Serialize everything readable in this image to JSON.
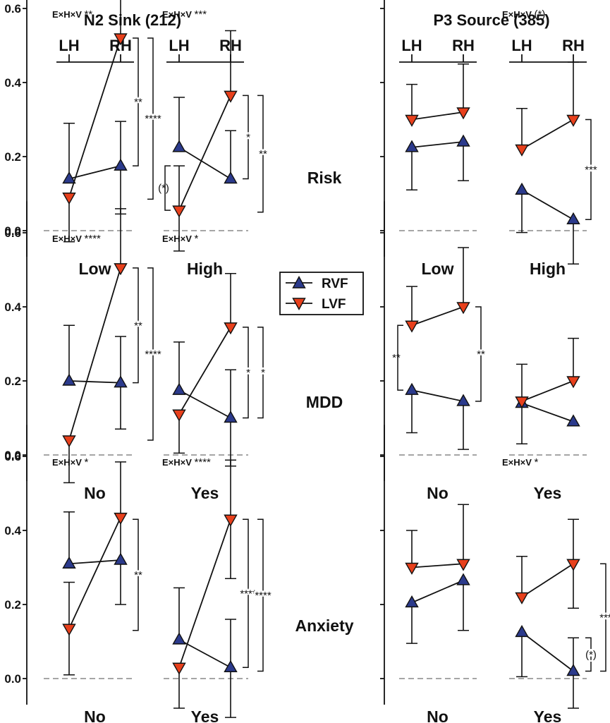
{
  "chart_data": {
    "type": "line",
    "column_titles": [
      "N2 Sink (212)",
      "P3 Source (385)"
    ],
    "hemisphere_labels": [
      "LH",
      "RH"
    ],
    "y_ticks": [
      "0.6",
      "0.4",
      "0.2",
      "0.0"
    ],
    "ylim": [
      0,
      0.6
    ],
    "reference_line": 0,
    "legend": {
      "RVF": {
        "label": "RVF",
        "color": "#2b3a8c",
        "marker": "triangle-up"
      },
      "LVF": {
        "label": "LVF",
        "color": "#e8401c",
        "marker": "triangle-down"
      }
    },
    "rows": [
      {
        "label": "Risk",
        "panels": [
          {
            "column": "N2 Sink (212)",
            "category": "Low",
            "interaction": {
              "label": "E×H×V",
              "sig": "**"
            },
            "RVF": {
              "values": [
                0.14,
                0.175
              ],
              "errors": [
                [
                  0.0,
                  0.29
                ],
                [
                  0.045,
                  0.295
                ]
              ]
            },
            "LVF": {
              "values": [
                0.09,
                0.52
              ],
              "errors": [
                [
                  -0.03,
                  0.0
                ],
                [
                  0.0,
                  0.66
                ]
              ]
            },
            "brackets": [
              {
                "pos": 0,
                "y": [
                  0.175,
                  0.52
                ],
                "sig": "**"
              },
              {
                "pos": 1,
                "y": [
                  0.085,
                  0.52
                ],
                "sig": "****"
              }
            ]
          },
          {
            "column": "N2 Sink (212)",
            "category": "High",
            "interaction": {
              "label": "E×H×V",
              "sig": "***"
            },
            "RVF": {
              "values": [
                0.225,
                0.14
              ],
              "errors": [
                [
                  0.0,
                  0.36
                ],
                [
                  0.0,
                  0.27
                ]
              ]
            },
            "LVF": {
              "values": [
                0.055,
                0.365
              ],
              "errors": [
                [
                  -0.055,
                  0.175
                ],
                [
                  0.0,
                  0.54
                ]
              ]
            },
            "brackets": [
              {
                "pos": -1,
                "y": [
                  0.055,
                  0.175
                ],
                "sig": "(*)"
              },
              {
                "pos": 0,
                "y": [
                  0.14,
                  0.365
                ],
                "sig": "*"
              },
              {
                "pos": 1,
                "y": [
                  0.05,
                  0.365
                ],
                "sig": "**"
              }
            ]
          },
          {
            "column": "P3 Source (385)",
            "category": "Low",
            "interaction": null,
            "RVF": {
              "values": [
                0.225,
                0.24
              ],
              "errors": [
                [
                  0.11,
                  0.0
                ],
                [
                  0.135,
                  0.0
                ]
              ]
            },
            "LVF": {
              "values": [
                0.3,
                0.32
              ],
              "errors": [
                [
                  0.0,
                  0.395
                ],
                [
                  0.0,
                  0.45
                ]
              ]
            },
            "brackets": []
          },
          {
            "column": "P3 Source (385)",
            "category": "High",
            "interaction": {
              "label": "E×H×V",
              "sig": "(*)"
            },
            "RVF": {
              "values": [
                0.11,
                0.03
              ],
              "errors": [
                [
                  -0.005,
                  0.0
                ],
                [
                  -0.09,
                  0.0
                ]
              ]
            },
            "LVF": {
              "values": [
                0.22,
                0.3
              ],
              "errors": [
                [
                  0.0,
                  0.33
                ],
                [
                  0.0,
                  0.455
                ]
              ]
            },
            "brackets": [
              {
                "pos": 0,
                "y": [
                  0.03,
                  0.3
                ],
                "sig": "***"
              }
            ]
          }
        ]
      },
      {
        "label": "MDD",
        "panels": [
          {
            "column": "N2 Sink (212)",
            "category": "No",
            "interaction": {
              "label": "E×H×V",
              "sig": "****"
            },
            "RVF": {
              "values": [
                0.2,
                0.195
              ],
              "errors": [
                [
                  0.0,
                  0.35
                ],
                [
                  0.07,
                  0.32
                ]
              ]
            },
            "LVF": {
              "values": [
                0.04,
                0.505
              ],
              "errors": [
                [
                  -0.075,
                  0.0
                ],
                [
                  0.0,
                  0.665
                ]
              ]
            },
            "brackets": [
              {
                "pos": 0,
                "y": [
                  0.195,
                  0.505
                ],
                "sig": "**"
              },
              {
                "pos": 1,
                "y": [
                  0.04,
                  0.505
                ],
                "sig": "****"
              }
            ]
          },
          {
            "column": "N2 Sink (212)",
            "category": "Yes",
            "interaction": {
              "label": "E×H×V",
              "sig": "*"
            },
            "RVF": {
              "values": [
                0.175,
                0.1
              ],
              "errors": [
                [
                  0.0,
                  0.305
                ],
                [
                  -0.03,
                  0.23
                ]
              ]
            },
            "LVF": {
              "values": [
                0.11,
                0.345
              ],
              "errors": [
                [
                  0.005,
                  0.0
                ],
                [
                  0.0,
                  0.49
                ]
              ]
            },
            "brackets": [
              {
                "pos": 0,
                "y": [
                  0.1,
                  0.345
                ],
                "sig": "*"
              },
              {
                "pos": 1,
                "y": [
                  0.1,
                  0.345
                ],
                "sig": "*"
              }
            ]
          },
          {
            "column": "P3 Source (385)",
            "category": "No",
            "interaction": null,
            "RVF": {
              "values": [
                0.175,
                0.145
              ],
              "errors": [
                [
                  0.06,
                  0.0
                ],
                [
                  0.015,
                  0.0
                ]
              ]
            },
            "LVF": {
              "values": [
                0.35,
                0.4
              ],
              "errors": [
                [
                  0.0,
                  0.455
                ],
                [
                  0.0,
                  0.56
                ]
              ]
            },
            "brackets": [
              {
                "pos": -1,
                "y": [
                  0.175,
                  0.35
                ],
                "sig": "**"
              },
              {
                "pos": 0,
                "y": [
                  0.145,
                  0.4
                ],
                "sig": "**"
              }
            ]
          },
          {
            "column": "P3 Source (385)",
            "category": "Yes",
            "interaction": null,
            "RVF": {
              "values": [
                0.14,
                0.09
              ],
              "errors": [
                [
                  0.03,
                  0.0
                ],
                [
                  0.0,
                  0.0
                ]
              ]
            },
            "LVF": {
              "values": [
                0.145,
                0.2
              ],
              "errors": [
                [
                  0.0,
                  0.245
                ],
                [
                  0.0,
                  0.315
                ]
              ]
            },
            "brackets": []
          }
        ]
      },
      {
        "label": "Anxiety",
        "panels": [
          {
            "column": "N2 Sink (212)",
            "category": "No",
            "interaction": {
              "label": "E×H×V",
              "sig": "*"
            },
            "RVF": {
              "values": [
                0.31,
                0.32
              ],
              "errors": [
                [
                  0.0,
                  0.45
                ],
                [
                  0.0,
                  0.0
                ]
              ]
            },
            "LVF": {
              "values": [
                0.135,
                0.435
              ],
              "errors": [
                [
                  0.01,
                  0.26
                ],
                [
                  0.2,
                  0.585
                ]
              ]
            },
            "brackets": [
              {
                "pos": 0,
                "y": [
                  0.13,
                  0.43
                ],
                "sig": "**"
              }
            ]
          },
          {
            "column": "N2 Sink (212)",
            "category": "Yes",
            "interaction": {
              "label": "E×H×V",
              "sig": "****"
            },
            "RVF": {
              "values": [
                0.105,
                0.03
              ],
              "errors": [
                [
                  0.0,
                  0.245
                ],
                [
                  -0.105,
                  0.16
                ]
              ]
            },
            "LVF": {
              "values": [
                0.03,
                0.43
              ],
              "errors": [
                [
                  -0.08,
                  0.0
                ],
                [
                  0.27,
                  0.59
                ]
              ]
            },
            "brackets": [
              {
                "pos": 0,
                "y": [
                  0.03,
                  0.43
                ],
                "sig": "****"
              },
              {
                "pos": 1,
                "y": [
                  0.02,
                  0.43
                ],
                "sig": "****"
              }
            ]
          },
          {
            "column": "P3 Source (385)",
            "category": "No",
            "interaction": null,
            "RVF": {
              "values": [
                0.205,
                0.265
              ],
              "errors": [
                [
                  0.095,
                  0.0
                ],
                [
                  0.13,
                  0.0
                ]
              ]
            },
            "LVF": {
              "values": [
                0.3,
                0.31
              ],
              "errors": [
                [
                  0.0,
                  0.4
                ],
                [
                  0.0,
                  0.47
                ]
              ]
            },
            "brackets": []
          },
          {
            "column": "P3 Source (385)",
            "category": "Yes",
            "interaction": {
              "label": "E×H×V",
              "sig": "*"
            },
            "RVF": {
              "values": [
                0.125,
                0.02
              ],
              "errors": [
                [
                  0.005,
                  0.0
                ],
                [
                  -0.08,
                  0.11
                ]
              ]
            },
            "LVF": {
              "values": [
                0.22,
                0.31
              ],
              "errors": [
                [
                  0.0,
                  0.33
                ],
                [
                  0.19,
                  0.43
                ]
              ]
            },
            "brackets": [
              {
                "pos": 0,
                "y": [
                  0.02,
                  0.11
                ],
                "sig": "(*)"
              },
              {
                "pos": 1,
                "y": [
                  0.02,
                  0.31
                ],
                "sig": "***"
              }
            ]
          }
        ]
      }
    ]
  }
}
